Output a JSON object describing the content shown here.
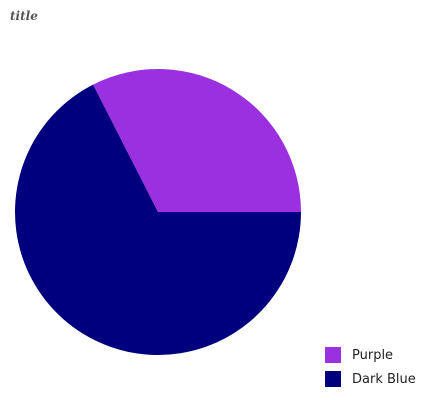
{
  "chart_data": {
    "type": "pie",
    "title": "title",
    "series": [
      {
        "name": "Purple",
        "value": 32.5,
        "color": "#9b30e0"
      },
      {
        "name": "Dark Blue",
        "value": 67.5,
        "color": "#00007f"
      }
    ],
    "legend_position": "bottom-right"
  }
}
